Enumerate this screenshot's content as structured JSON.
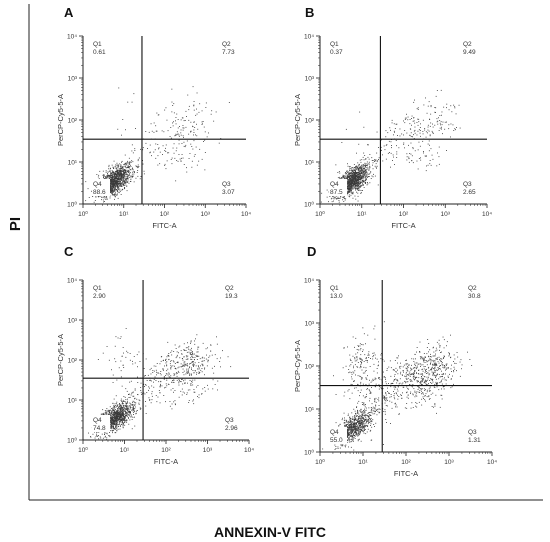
{
  "figure": {
    "y_label": "PI",
    "x_label": "ANNEXIN-V FITC"
  },
  "colors": {
    "dots": "#3a3a3a",
    "axes": "#222222",
    "background": "#ffffff"
  },
  "chart_data": [
    {
      "type": "scatter",
      "panel": "A",
      "xlabel": "FITC-A",
      "ylabel": "PerCP-Cy5-5-A",
      "xscale": "log",
      "yscale": "log",
      "xlim": [
        1,
        10000
      ],
      "ylim": [
        1,
        10000
      ],
      "x_ticks": [
        "10⁰",
        "10¹",
        "10²",
        "10³",
        "10⁴"
      ],
      "y_ticks": [
        "10⁰",
        "10¹",
        "10²",
        "10³",
        "10⁴"
      ],
      "gate": {
        "x": 28,
        "y": 35
      },
      "quadrants": [
        {
          "name": "Q1",
          "percent": "0.61",
          "corner": "top-left"
        },
        {
          "name": "Q2",
          "percent": "7.73",
          "corner": "top-right"
        },
        {
          "name": "Q3",
          "percent": "3.07",
          "corner": "bottom-right"
        },
        {
          "name": "Q4",
          "percent": "88.6",
          "corner": "bottom-left"
        }
      ]
    },
    {
      "type": "scatter",
      "panel": "B",
      "xlabel": "FITC-A",
      "ylabel": "PerCP-Cy5-5-A",
      "xscale": "log",
      "yscale": "log",
      "xlim": [
        1,
        10000
      ],
      "ylim": [
        1,
        10000
      ],
      "x_ticks": [
        "10⁰",
        "10¹",
        "10²",
        "10³",
        "10⁴"
      ],
      "y_ticks": [
        "10⁰",
        "10¹",
        "10²",
        "10³",
        "10⁴"
      ],
      "gate": {
        "x": 28,
        "y": 35
      },
      "quadrants": [
        {
          "name": "Q1",
          "percent": "0.37",
          "corner": "top-left"
        },
        {
          "name": "Q2",
          "percent": "9.49",
          "corner": "top-right"
        },
        {
          "name": "Q3",
          "percent": "2.65",
          "corner": "bottom-right"
        },
        {
          "name": "Q4",
          "percent": "87.5",
          "corner": "bottom-left"
        }
      ]
    },
    {
      "type": "scatter",
      "panel": "C",
      "xlabel": "FITC-A",
      "ylabel": "PerCP-Cy5-5-A",
      "xscale": "log",
      "yscale": "log",
      "xlim": [
        1,
        10000
      ],
      "ylim": [
        1,
        10000
      ],
      "x_ticks": [
        "10⁰",
        "10¹",
        "10²",
        "10³",
        "10⁴"
      ],
      "y_ticks": [
        "10⁰",
        "10¹",
        "10²",
        "10³",
        "10⁴"
      ],
      "gate": {
        "x": 28,
        "y": 35
      },
      "quadrants": [
        {
          "name": "Q1",
          "percent": "2.90",
          "corner": "top-left"
        },
        {
          "name": "Q2",
          "percent": "19.3",
          "corner": "top-right"
        },
        {
          "name": "Q3",
          "percent": "2.96",
          "corner": "bottom-right"
        },
        {
          "name": "Q4",
          "percent": "74.8",
          "corner": "bottom-left"
        }
      ]
    },
    {
      "type": "scatter",
      "panel": "D",
      "xlabel": "FITC-A",
      "ylabel": "PerCP-Cy5-5-A",
      "xscale": "log",
      "yscale": "log",
      "xlim": [
        1,
        10000
      ],
      "ylim": [
        1,
        10000
      ],
      "x_ticks": [
        "10⁰",
        "10¹",
        "10²",
        "10³",
        "10⁴"
      ],
      "y_ticks": [
        "10⁰",
        "10¹",
        "10²",
        "10³",
        "10⁴"
      ],
      "gate": {
        "x": 28,
        "y": 35
      },
      "quadrants": [
        {
          "name": "Q1",
          "percent": "13.0",
          "corner": "top-left"
        },
        {
          "name": "Q2",
          "percent": "30.8",
          "corner": "top-right"
        },
        {
          "name": "Q3",
          "percent": "1.31",
          "corner": "bottom-right"
        },
        {
          "name": "Q4",
          "percent": "55.0",
          "corner": "bottom-left"
        }
      ]
    }
  ]
}
